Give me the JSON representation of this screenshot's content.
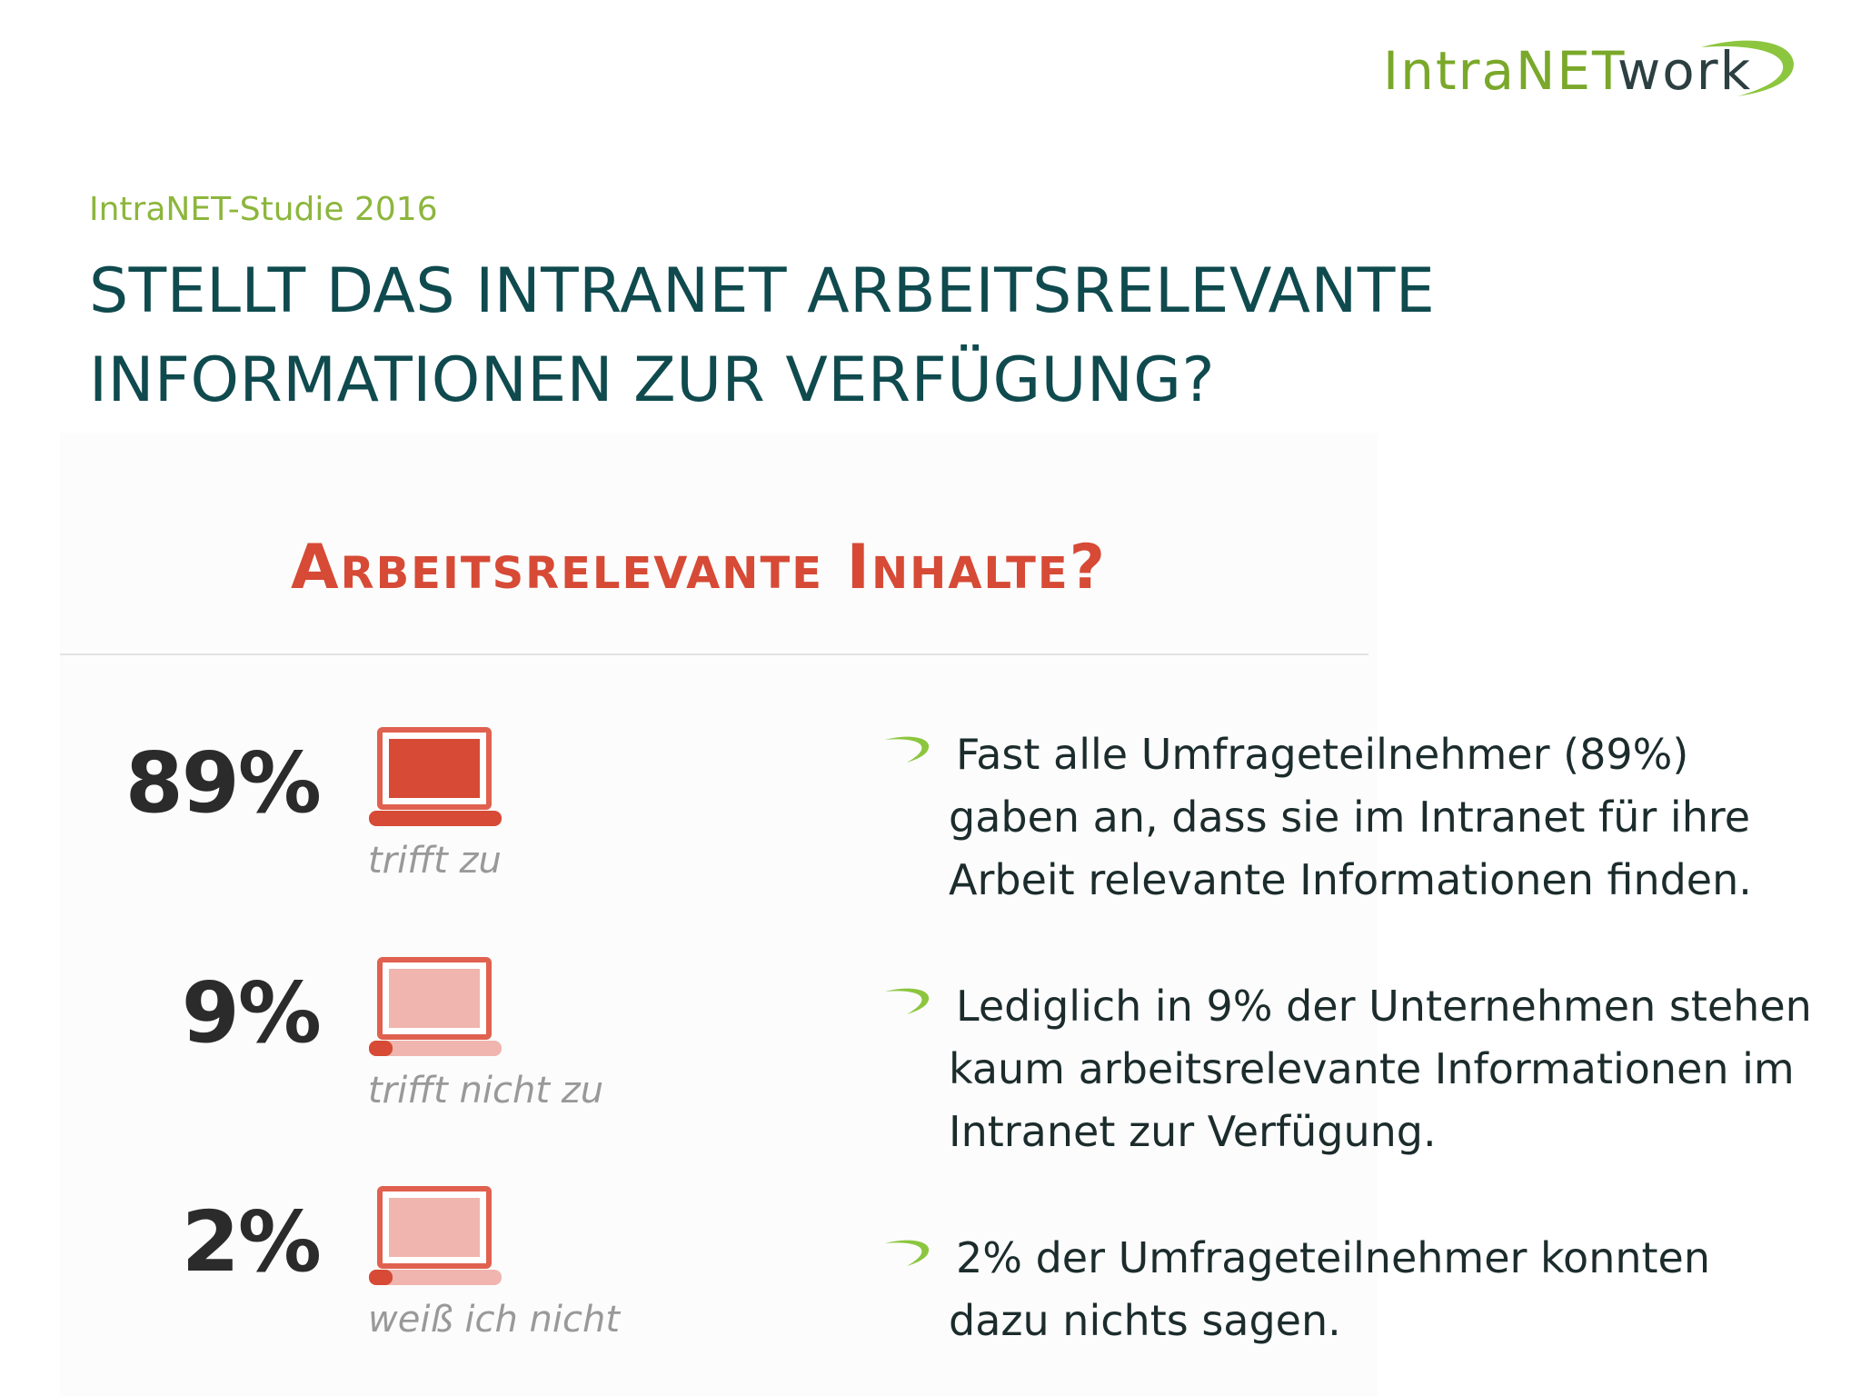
{
  "logo": {
    "text_a": "IntraNET",
    "text_b": "work",
    "swoosh_color": "#8cc63e"
  },
  "header": {
    "supertitle": "IntraNET-Studie 2016",
    "title_line1": "STELLT DAS INTRANET ARBEITSRELEVANTE",
    "title_line2": "INFORMATIONEN ZUR VERFÜGUNG?"
  },
  "chart_data": {
    "type": "table",
    "title": "Arbeitsrelevante Inhalte?",
    "categories": [
      "trifft zu",
      "trifft nicht zu",
      "weiß ich nicht"
    ],
    "values": [
      89,
      9,
      2
    ],
    "value_labels": [
      "89%",
      "9%",
      "2%"
    ],
    "colors": {
      "accent": "#d64a36",
      "muted": "#f0b5ae",
      "frame": "#e06150"
    }
  },
  "bullets": [
    {
      "text": "Fast alle Umfrageteilnehmer (89%)\ngaben an, dass sie im Intranet für ihre\nArbeit relevante Informationen finden."
    },
    {
      "text": "Lediglich in 9% der Unternehmen stehen\nkaum arbeitsrelevante Informationen im\nIntranet zur Verfügung."
    },
    {
      "text": "2% der Umfrageteilnehmer konnten\ndazu nichts sagen."
    }
  ]
}
